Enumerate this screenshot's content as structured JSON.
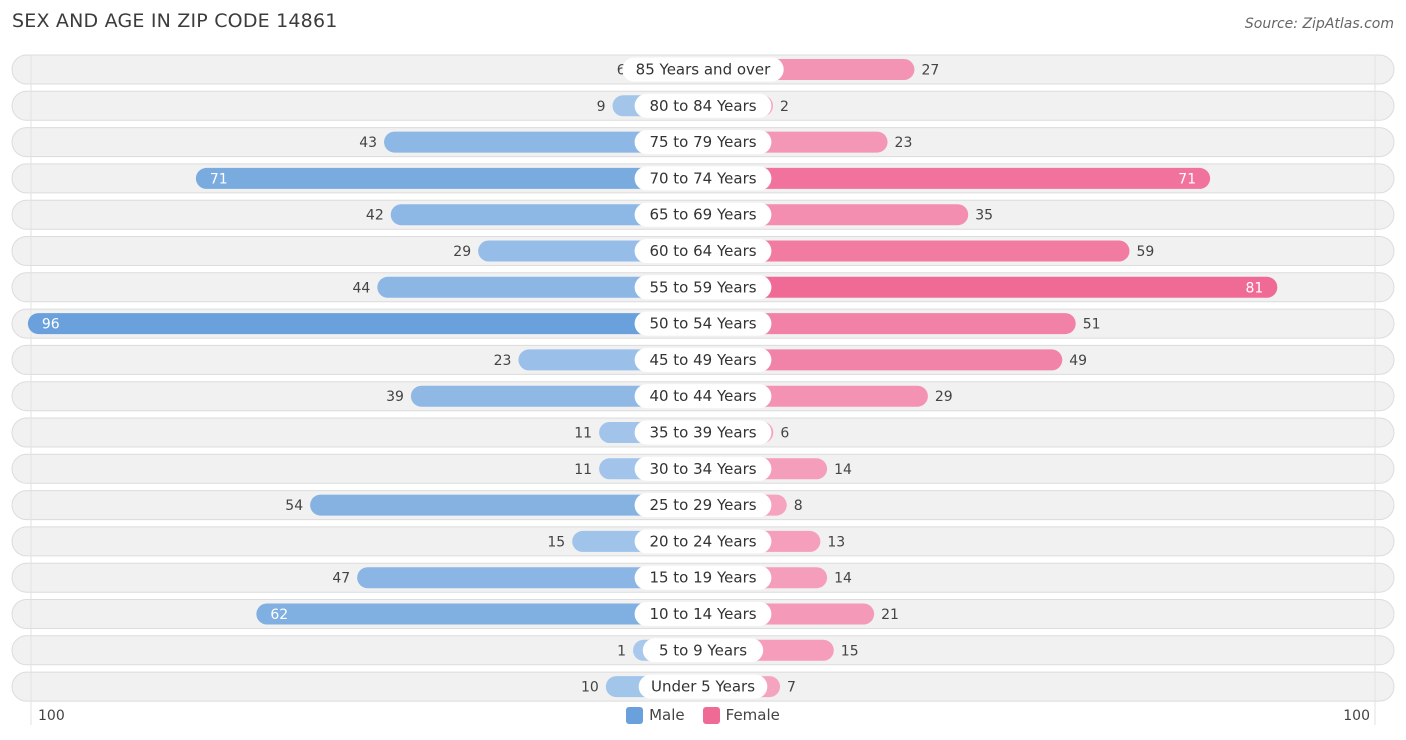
{
  "header": {
    "title": "SEX AND AGE IN ZIP CODE 14861",
    "source": "Source: ZipAtlas.com"
  },
  "legend": {
    "male_label": "Male",
    "female_label": "Female"
  },
  "axis": {
    "left_label": "100",
    "right_label": "100"
  },
  "colors": {
    "male_strong": "#6aa0db",
    "male_light": "#a9c9ec",
    "female_strong": "#f06a96",
    "female_light": "#f6a9c4",
    "row_bg": "#f1f1f1",
    "row_border": "#dcdcdc"
  },
  "chart_data": {
    "type": "bar",
    "orientation": "horizontal-diverging",
    "title": "SEX AND AGE IN ZIP CODE 14861",
    "xlim": [
      0,
      100
    ],
    "categories": [
      "85 Years and over",
      "80 to 84 Years",
      "75 to 79 Years",
      "70 to 74 Years",
      "65 to 69 Years",
      "60 to 64 Years",
      "55 to 59 Years",
      "50 to 54 Years",
      "45 to 49 Years",
      "40 to 44 Years",
      "35 to 39 Years",
      "30 to 34 Years",
      "25 to 29 Years",
      "20 to 24 Years",
      "15 to 19 Years",
      "10 to 14 Years",
      "5 to 9 Years",
      "Under 5 Years"
    ],
    "series": [
      {
        "name": "Male",
        "values": [
          6,
          9,
          43,
          71,
          42,
          29,
          44,
          96,
          23,
          39,
          11,
          11,
          54,
          15,
          47,
          62,
          1,
          10
        ]
      },
      {
        "name": "Female",
        "values": [
          27,
          2,
          23,
          71,
          35,
          59,
          81,
          51,
          49,
          29,
          6,
          14,
          8,
          13,
          14,
          21,
          15,
          7
        ]
      }
    ],
    "legend": "bottom-center"
  }
}
